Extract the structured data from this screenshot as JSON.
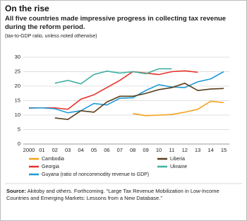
{
  "chart_data": {
    "type": "line",
    "title": "On the rise",
    "subtitle": "All five countries made impressive progress in collecting tax revenue during the reform period.",
    "note": "(tax-to-GDP ratio, unless noted otherwise)",
    "categories": [
      "2000",
      "01",
      "02",
      "03",
      "04",
      "05",
      "06",
      "07",
      "08",
      "09",
      "10",
      "11",
      "12",
      "13",
      "14",
      "15"
    ],
    "series": [
      {
        "name": "Cambodia",
        "color": "#f5a01a",
        "values": [
          null,
          null,
          null,
          null,
          null,
          null,
          null,
          null,
          10.5,
          9.8,
          10,
          10.2,
          11,
          12,
          14.8,
          14.3
        ]
      },
      {
        "name": "Georgia",
        "color": "#e8332a",
        "values": [
          12.5,
          12.5,
          12.5,
          12,
          15.5,
          17,
          19.5,
          22,
          25,
          24.5,
          24,
          25,
          25.3,
          24.8,
          null,
          null
        ]
      },
      {
        "name": "Guyana (ratio of noncommodity revenue to GDP)",
        "color": "#1e9ad6",
        "values": [
          12.4,
          12.5,
          12.2,
          10.8,
          11.5,
          14,
          13.5,
          15.8,
          16,
          18.5,
          20.5,
          19.7,
          19.5,
          21.5,
          22.5,
          25
        ]
      },
      {
        "name": "Liberia",
        "color": "#5a3e1b",
        "values": [
          null,
          null,
          9,
          8.5,
          11.5,
          11,
          14.5,
          16.5,
          16.5,
          17.5,
          18.8,
          19.5,
          21,
          18.5,
          19,
          19.2
        ]
      },
      {
        "name": "Ukraine",
        "color": "#3fb0a2",
        "values": [
          null,
          null,
          21,
          22,
          20.8,
          24,
          25.2,
          24.5,
          25,
          24.3,
          26,
          26,
          null,
          null,
          null,
          null
        ]
      }
    ],
    "ylim": [
      0,
      30
    ],
    "yticks": [
      0,
      5,
      10,
      15,
      20,
      25,
      30
    ],
    "grid": true,
    "source_label": "Source:",
    "source_text": "Akitoby and others. Forthcoming. “Large Tax Revenue Mobilization in Low-Income Countries and Emerging Markets: Lessons from a New Database.”"
  }
}
